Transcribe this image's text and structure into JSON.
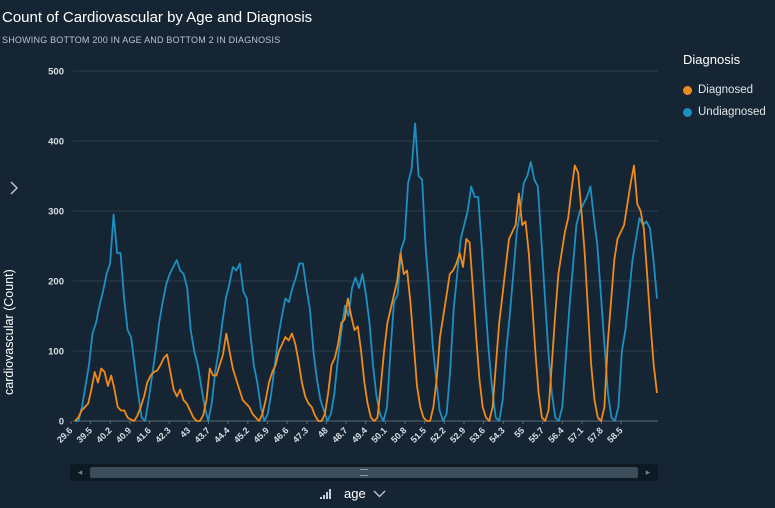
{
  "visual": {
    "title": "Count of Cardiovascular by Age and Diagnosis",
    "subtitle": "SHOWING BOTTOM 200 IN AGE AND BOTTOM 2 IN DIAGNOSIS",
    "y_field_label": "cardiovascular (Count)",
    "x_field_label": "age",
    "collapse_icon": "chevron-right-icon",
    "sort_icon": "sort-icon",
    "dropdown_icon": "chevron-down-icon"
  },
  "legend": {
    "title": "Diagnosis",
    "items": [
      {
        "label": "Diagnosed",
        "color": "#f08a1a"
      },
      {
        "label": "Undiagnosed",
        "color": "#1d8fc1"
      }
    ]
  },
  "chart_data": {
    "type": "line",
    "title": "Count of Cardiovascular by Age and Diagnosis",
    "subtitle": "SHOWING BOTTOM 200 IN AGE AND BOTTOM 2 IN DIAGNOSIS",
    "xlabel": "age",
    "ylabel": "cardiovascular (Count)",
    "ylim": [
      0,
      500
    ],
    "yticks": [
      0,
      100,
      200,
      300,
      400,
      500
    ],
    "grid": true,
    "legend_position": "right",
    "x_tick_labels": [
      "29.6",
      "39.5",
      "40.2",
      "40.9",
      "41.6",
      "42.3",
      "43",
      "43.7",
      "44.4",
      "45.2",
      "45.9",
      "46.6",
      "47.3",
      "48",
      "48.7",
      "49.4",
      "50.1",
      "50.8",
      "51.5",
      "52.2",
      "52.9",
      "53.6",
      "54.3",
      "55",
      "55.7",
      "56.4",
      "57.1",
      "57.8",
      "58.5"
    ],
    "series": [
      {
        "name": "Diagnosed",
        "color": "#f08a1a",
        "values": [
          0,
          5,
          15,
          20,
          25,
          45,
          70,
          55,
          75,
          70,
          50,
          65,
          45,
          20,
          15,
          15,
          5,
          2,
          0,
          8,
          20,
          35,
          55,
          65,
          70,
          72,
          80,
          90,
          95,
          70,
          45,
          35,
          45,
          30,
          25,
          15,
          5,
          0,
          0,
          8,
          30,
          75,
          65,
          65,
          80,
          95,
          125,
          100,
          75,
          60,
          45,
          30,
          25,
          20,
          10,
          5,
          0,
          10,
          30,
          55,
          70,
          80,
          100,
          110,
          120,
          115,
          125,
          110,
          85,
          55,
          35,
          25,
          20,
          8,
          0,
          0,
          10,
          40,
          80,
          90,
          110,
          140,
          145,
          175,
          150,
          130,
          135,
          100,
          55,
          25,
          5,
          0,
          5,
          50,
          100,
          140,
          160,
          180,
          200,
          240,
          210,
          215,
          170,
          110,
          50,
          20,
          5,
          0,
          0,
          20,
          60,
          120,
          150,
          180,
          210,
          215,
          225,
          240,
          220,
          260,
          255,
          190,
          120,
          60,
          20,
          5,
          0,
          20,
          80,
          140,
          180,
          220,
          260,
          270,
          280,
          325,
          280,
          285,
          240,
          170,
          100,
          40,
          5,
          0,
          15,
          80,
          150,
          210,
          240,
          270,
          290,
          330,
          365,
          355,
          300,
          240,
          160,
          80,
          30,
          5,
          0,
          20,
          110,
          170,
          230,
          260,
          270,
          280,
          310,
          340,
          365,
          310,
          300,
          275,
          210,
          140,
          80,
          40
        ]
      },
      {
        "name": "Undiagnosed",
        "color": "#1d8fc1",
        "values": [
          0,
          0,
          20,
          50,
          80,
          125,
          140,
          165,
          185,
          210,
          225,
          295,
          240,
          240,
          175,
          130,
          120,
          80,
          40,
          5,
          0,
          30,
          65,
          100,
          140,
          170,
          195,
          210,
          220,
          230,
          215,
          210,
          190,
          130,
          100,
          80,
          50,
          20,
          0,
          25,
          70,
          100,
          140,
          175,
          195,
          220,
          215,
          225,
          185,
          175,
          125,
          80,
          55,
          20,
          0,
          10,
          40,
          80,
          120,
          150,
          175,
          170,
          190,
          205,
          225,
          225,
          190,
          160,
          100,
          60,
          30,
          15,
          0,
          10,
          40,
          90,
          130,
          165,
          150,
          190,
          205,
          190,
          210,
          180,
          140,
          80,
          35,
          10,
          0,
          20,
          100,
          170,
          180,
          245,
          260,
          340,
          360,
          425,
          350,
          345,
          250,
          185,
          110,
          60,
          15,
          0,
          10,
          70,
          160,
          210,
          260,
          280,
          300,
          335,
          320,
          320,
          250,
          170,
          100,
          45,
          5,
          0,
          30,
          100,
          150,
          210,
          270,
          300,
          340,
          350,
          370,
          345,
          335,
          260,
          180,
          100,
          40,
          5,
          0,
          20,
          90,
          160,
          220,
          280,
          300,
          310,
          320,
          335,
          290,
          250,
          180,
          110,
          40,
          5,
          0,
          20,
          100,
          130,
          180,
          230,
          260,
          290,
          280,
          285,
          275,
          230,
          175
        ]
      }
    ]
  }
}
